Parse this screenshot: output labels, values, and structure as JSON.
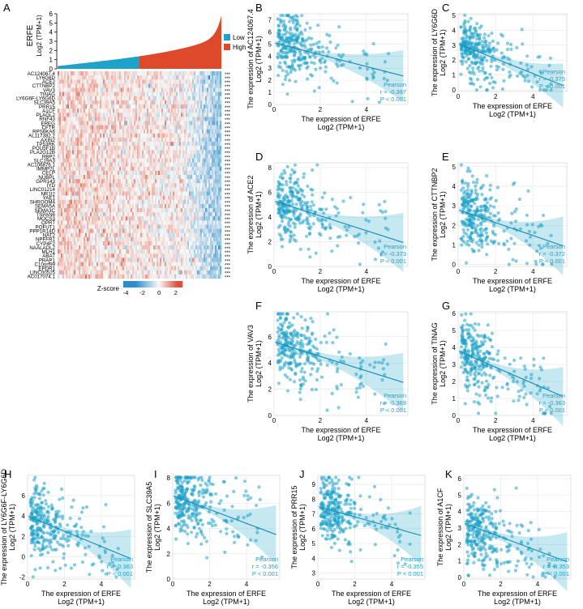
{
  "panels": {
    "A": {
      "letter": "A",
      "bar_ylabel_gene": "ERFE",
      "bar_ylabel_unit": "Log2 (TPM+1)",
      "bar_yticks": [
        "0",
        "1",
        "2",
        "3",
        "4",
        "5",
        "6"
      ],
      "legend": [
        {
          "label": "Low",
          "color": "#1da2c9"
        },
        {
          "label": "High",
          "color": "#dd4a2b"
        }
      ],
      "genes": [
        "AC124067.4",
        "LY6G6D",
        "ACE2",
        "CTTNBP2",
        "VAV3",
        "TINAG",
        "LY6G6F-LY6G6D",
        "SLC39A5",
        "PRR15",
        "A1CF",
        "PLAGL2",
        "RNF43",
        "EREG",
        "CFTR",
        "RPS6KA6",
        "AL117382.2",
        "AXIN2",
        "TP53RK",
        "POU5F1B",
        "PLA2G12B",
        "RBP2",
        "SLC19A3",
        "AC106876.1",
        "IMMP2L",
        "CELP",
        "NUBPL",
        "GPR143",
        "IYD",
        "LINC01214",
        "NR1I2",
        "YAE1",
        "SHROOM4",
        "SEMA5A",
        "SEMA3C",
        "TSPAN6",
        "MOCS3",
        "QPRT",
        "POFUT1",
        "PPP1R14D",
        "NAT2",
        "NPFFR1",
        "CYP4F2",
        "NAALADL2",
        "MLH1",
        "ABAT",
        "PRAP1",
        "C10orf99",
        "EPDR1",
        "LINC00525",
        "AC017074.1"
      ],
      "significance": "***",
      "zscore_label": "Z-score",
      "zscore_ticks": [
        "-4",
        "-2",
        "0",
        "2"
      ]
    },
    "scatter_common": {
      "xlabel": "The expression of ERFE",
      "axis_unit": "Log2 (TPM+1)",
      "method": "Pearson"
    },
    "scatter": [
      {
        "letter": "B",
        "gene": "AC124067.4",
        "r": "r = -0.397",
        "p": "P < 0.001"
      },
      {
        "letter": "C",
        "gene": "LY6G6D",
        "r": "r = -0.375",
        "p": "P < 0.001"
      },
      {
        "letter": "D",
        "gene": "ACE2",
        "r": "r = -0.373",
        "p": "P < 0.001"
      },
      {
        "letter": "E",
        "gene": "CTTNBP2",
        "r": "r = -0.372",
        "p": "P < 0.001"
      },
      {
        "letter": "F",
        "gene": "VAV3",
        "r": "r = -0.369",
        "p": "P < 0.001"
      },
      {
        "letter": "G",
        "gene": "TINAG",
        "r": "r = -0.363",
        "p": "P < 0.001"
      },
      {
        "letter": "H",
        "gene": "LY6G6F-LY6G6D",
        "r": "r = -0.363",
        "p": "P < 0.001"
      },
      {
        "letter": "I",
        "gene": "SLC39A5",
        "r": "r = -0.356",
        "p": "P < 0.001"
      },
      {
        "letter": "J",
        "gene": "PRR15",
        "r": "r = -0.355",
        "p": "P < 0.001"
      },
      {
        "letter": "K",
        "gene": "A1CF",
        "r": "r = -0.353",
        "p": "P < 0.001"
      }
    ]
  },
  "chart_data": [
    {
      "type": "heatmap",
      "panel": "A",
      "title": "",
      "description": "ERFE expression (bar, sorted) vs z-scored expression of 50 genes",
      "bar_ylim": [
        0,
        6
      ],
      "zscore_range": [
        -4,
        3
      ],
      "colors": {
        "low": "#1da2c9",
        "high": "#dd4a2b"
      }
    },
    {
      "type": "scatter",
      "panel": "B",
      "xlim": [
        0,
        5.8
      ],
      "ylim": [
        0,
        7.5
      ],
      "xticks": [
        0,
        2,
        4
      ],
      "yticks": [
        0,
        1,
        2,
        3,
        4,
        5,
        6,
        7
      ],
      "fit": {
        "intercept": 5.1,
        "slope": -0.49
      }
    },
    {
      "type": "scatter",
      "panel": "C",
      "xlim": [
        0,
        5.8
      ],
      "ylim": [
        -0.1,
        5.1
      ],
      "xticks": [
        0,
        2,
        4
      ],
      "yticks": [
        0,
        1,
        2,
        3,
        4,
        5
      ],
      "fit": {
        "intercept": 3.1,
        "slope": -0.5
      }
    },
    {
      "type": "scatter",
      "panel": "D",
      "xlim": [
        0,
        5.8
      ],
      "ylim": [
        0,
        8.4
      ],
      "xticks": [
        0,
        2,
        4
      ],
      "yticks": [
        0,
        2,
        4,
        6,
        8
      ],
      "fit": {
        "intercept": 5.3,
        "slope": -0.6
      }
    },
    {
      "type": "scatter",
      "panel": "E",
      "xlim": [
        0,
        5.8
      ],
      "ylim": [
        -0.1,
        5.2
      ],
      "xticks": [
        0,
        2,
        4
      ],
      "yticks": [
        0,
        1,
        2,
        3,
        4,
        5
      ],
      "fit": {
        "intercept": 2.8,
        "slope": -0.33
      }
    },
    {
      "type": "scatter",
      "panel": "F",
      "xlim": [
        0,
        5.8
      ],
      "ylim": [
        0,
        7.9
      ],
      "xticks": [
        0,
        2,
        4
      ],
      "yticks": [
        0,
        2,
        4,
        6
      ],
      "fit": {
        "intercept": 5.6,
        "slope": -0.55
      }
    },
    {
      "type": "scatter",
      "panel": "G",
      "xlim": [
        0,
        5.8
      ],
      "ylim": [
        0,
        6.1
      ],
      "xticks": [
        0,
        2,
        4
      ],
      "yticks": [
        0,
        1,
        2,
        3,
        4,
        5,
        6
      ],
      "fit": {
        "intercept": 3.8,
        "slope": -0.48
      }
    },
    {
      "type": "scatter",
      "panel": "H",
      "xlim": [
        0,
        5.8
      ],
      "ylim": [
        -2.2,
        8
      ],
      "xticks": [
        0,
        2,
        4
      ],
      "yticks": [
        -2,
        0,
        2,
        4,
        6
      ],
      "fit": {
        "intercept": 4,
        "slope": -0.75
      }
    },
    {
      "type": "scatter",
      "panel": "I",
      "xlim": [
        0,
        5.8
      ],
      "ylim": [
        0,
        8.2
      ],
      "xticks": [
        0,
        2,
        4
      ],
      "yticks": [
        0,
        2,
        4,
        6,
        8
      ],
      "fit": {
        "intercept": 6.6,
        "slope": -0.55
      }
    },
    {
      "type": "scatter",
      "panel": "J",
      "xlim": [
        0,
        5.8
      ],
      "ylim": [
        2.6,
        9.6
      ],
      "xticks": [
        0,
        2,
        4
      ],
      "yticks": [
        3,
        4,
        5,
        6,
        7,
        8,
        9
      ],
      "fit": {
        "intercept": 7.5,
        "slope": -0.35
      }
    },
    {
      "type": "scatter",
      "panel": "K",
      "xlim": [
        0,
        5.8
      ],
      "ylim": [
        -0.1,
        6.2
      ],
      "xticks": [
        0,
        2,
        4
      ],
      "yticks": [
        0,
        1,
        2,
        3,
        4,
        5,
        6
      ],
      "fit": {
        "intercept": 3.3,
        "slope": -0.42
      }
    }
  ]
}
